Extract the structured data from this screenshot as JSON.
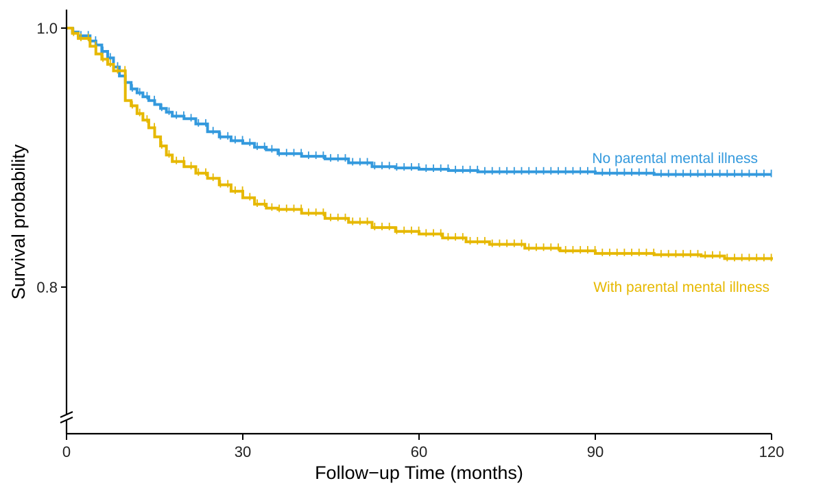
{
  "chart_data": {
    "type": "line",
    "subtype": "kaplan-meier-step",
    "title": "",
    "xlabel": "Follow−up Time (months)",
    "ylabel": "Survival probability",
    "xlim": [
      0,
      120
    ],
    "ylim": [
      0.7,
      1.015
    ],
    "y_axis_break": true,
    "grid": false,
    "legend": "inline labels at right end of curves",
    "x_ticks": [
      {
        "value": 0,
        "label": "0"
      },
      {
        "value": 30,
        "label": "30"
      },
      {
        "value": 60,
        "label": "60"
      },
      {
        "value": 90,
        "label": "90"
      },
      {
        "value": 120,
        "label": "120"
      }
    ],
    "y_ticks": [
      {
        "value": 1.0,
        "label": "1.0"
      },
      {
        "value": 0.8,
        "label": "0.8"
      }
    ],
    "series": [
      {
        "name": "No parental mental illness",
        "color": "#3399dd",
        "censor_marks": true,
        "x": [
          0,
          1,
          2,
          4,
          5,
          6,
          7,
          8,
          9,
          10,
          11,
          12,
          13,
          14,
          15,
          16,
          17,
          18,
          20,
          22,
          24,
          26,
          28,
          30,
          32,
          34,
          36,
          40,
          44,
          48,
          52,
          56,
          60,
          65,
          70,
          80,
          90,
          100,
          110,
          120
        ],
        "y": [
          1.0,
          0.997,
          0.994,
          0.99,
          0.987,
          0.982,
          0.977,
          0.97,
          0.963,
          0.958,
          0.953,
          0.95,
          0.947,
          0.944,
          0.941,
          0.938,
          0.935,
          0.932,
          0.93,
          0.926,
          0.92,
          0.916,
          0.913,
          0.911,
          0.908,
          0.906,
          0.903,
          0.901,
          0.899,
          0.896,
          0.893,
          0.892,
          0.891,
          0.89,
          0.889,
          0.889,
          0.888,
          0.887,
          0.887,
          0.887
        ]
      },
      {
        "name": "With parental mental illness",
        "color": "#e6b800",
        "censor_marks": true,
        "x": [
          0,
          1,
          2,
          4,
          5,
          6,
          7,
          8,
          10,
          11,
          12,
          13,
          14,
          15,
          16,
          17,
          18,
          20,
          22,
          24,
          26,
          28,
          30,
          32,
          34,
          36,
          40,
          44,
          48,
          52,
          56,
          60,
          64,
          68,
          72,
          78,
          84,
          90,
          100,
          108,
          112,
          120
        ],
        "y": [
          1.0,
          0.996,
          0.992,
          0.986,
          0.98,
          0.976,
          0.972,
          0.967,
          0.944,
          0.94,
          0.934,
          0.929,
          0.923,
          0.916,
          0.909,
          0.902,
          0.897,
          0.893,
          0.888,
          0.884,
          0.879,
          0.874,
          0.869,
          0.864,
          0.861,
          0.86,
          0.857,
          0.853,
          0.85,
          0.846,
          0.843,
          0.841,
          0.838,
          0.835,
          0.833,
          0.83,
          0.828,
          0.826,
          0.825,
          0.824,
          0.822,
          0.821
        ]
      }
    ]
  }
}
